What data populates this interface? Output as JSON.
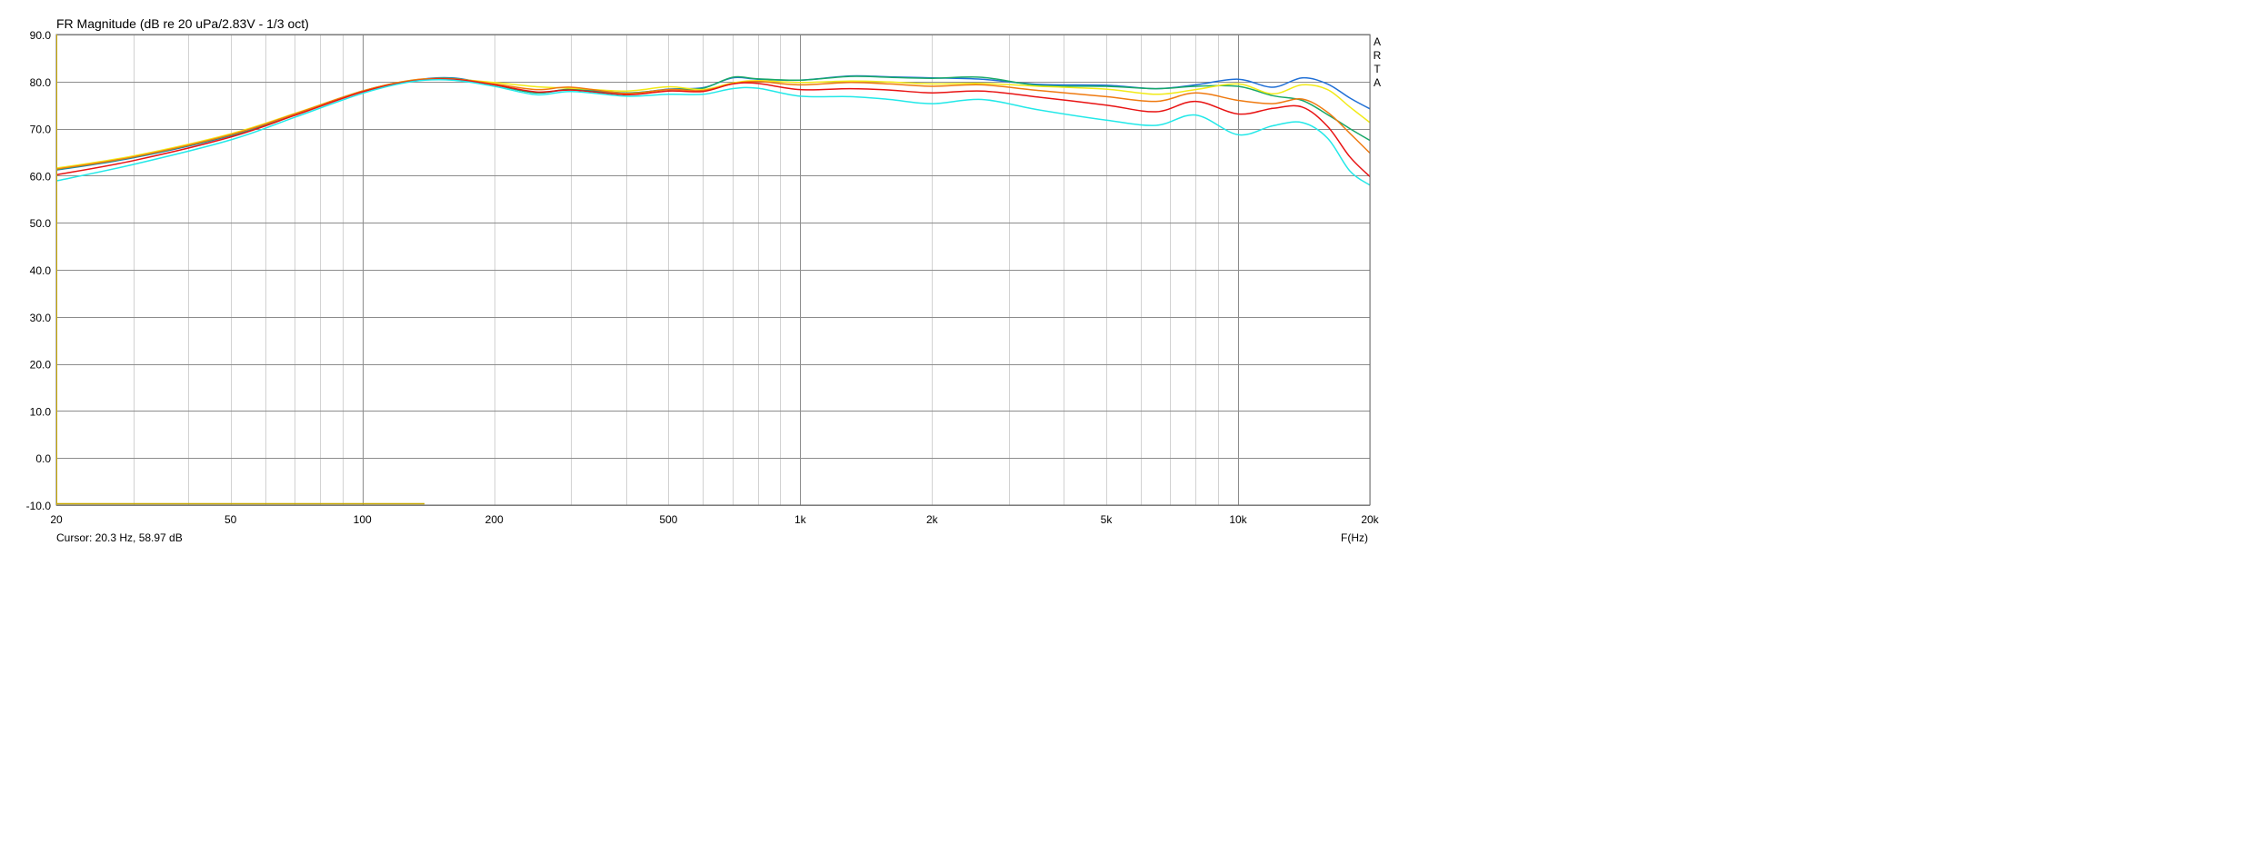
{
  "chart_data": {
    "type": "line",
    "title": "FR Magnitude (dB re 20 uPa/2.83V - 1/3 oct)",
    "xlabel": "F(Hz)",
    "x_scale": "log",
    "xlim": [
      20,
      20000
    ],
    "ylim": [
      -10,
      90
    ],
    "grid": true,
    "watermark": "ARTA",
    "cursor_text": "Cursor: 20.3 Hz, 58.97 dB",
    "x_ticks": [
      {
        "value": 20,
        "label": "20"
      },
      {
        "value": 50,
        "label": "50"
      },
      {
        "value": 100,
        "label": "100"
      },
      {
        "value": 200,
        "label": "200"
      },
      {
        "value": 500,
        "label": "500"
      },
      {
        "value": 1000,
        "label": "1k"
      },
      {
        "value": 2000,
        "label": "2k"
      },
      {
        "value": 5000,
        "label": "5k"
      },
      {
        "value": 10000,
        "label": "10k"
      },
      {
        "value": 20000,
        "label": "20k"
      }
    ],
    "y_ticks": [
      {
        "value": 90,
        "label": "90.0"
      },
      {
        "value": 80,
        "label": "80.0"
      },
      {
        "value": 70,
        "label": "70.0"
      },
      {
        "value": 60,
        "label": "60.0"
      },
      {
        "value": 50,
        "label": "50.0"
      },
      {
        "value": 40,
        "label": "40.0"
      },
      {
        "value": 30,
        "label": "30.0"
      },
      {
        "value": 20,
        "label": "20.0"
      },
      {
        "value": 10,
        "label": "10.0"
      },
      {
        "value": 0,
        "label": "0.0"
      },
      {
        "value": -10,
        "label": "-10.0"
      }
    ],
    "x": [
      20,
      30,
      50,
      70,
      100,
      130,
      160,
      200,
      250,
      300,
      400,
      500,
      600,
      700,
      800,
      1000,
      1300,
      1600,
      2000,
      2600,
      3500,
      5000,
      6500,
      8000,
      10000,
      12000,
      14000,
      16000,
      18000,
      20000
    ],
    "series": [
      {
        "color": "#1f6fd6",
        "values": [
          61.2,
          63.8,
          68.5,
          73.0,
          77.9,
          80.2,
          80.8,
          79.3,
          77.6,
          78.3,
          77.5,
          78.4,
          78.7,
          80.8,
          80.5,
          80.3,
          81.2,
          81.0,
          80.8,
          80.5,
          79.4,
          79.2,
          78.5,
          79.3,
          80.5,
          78.8,
          80.8,
          79.5,
          76.5,
          74.2
        ]
      },
      {
        "color": "#18a868",
        "values": [
          61.3,
          63.9,
          68.6,
          73.1,
          78.0,
          80.2,
          80.7,
          79.3,
          77.6,
          78.4,
          77.6,
          78.3,
          78.6,
          80.9,
          80.6,
          80.3,
          81.1,
          80.9,
          80.7,
          80.9,
          79.2,
          79.0,
          78.5,
          79.0,
          79.0,
          77.0,
          76.0,
          73.0,
          70.0,
          67.5
        ]
      },
      {
        "color": "#f2ea17",
        "values": [
          61.6,
          64.2,
          68.9,
          73.2,
          78.0,
          80.3,
          80.5,
          79.8,
          78.9,
          78.6,
          78.0,
          78.9,
          78.3,
          79.7,
          80.2,
          79.8,
          80.1,
          79.9,
          79.5,
          79.6,
          79.0,
          78.4,
          77.3,
          78.3,
          79.5,
          77.4,
          79.3,
          78.3,
          74.6,
          71.3
        ]
      },
      {
        "color": "#ef7a10",
        "values": [
          61.4,
          64.0,
          68.7,
          73.1,
          78.0,
          80.3,
          80.6,
          79.5,
          78.3,
          78.8,
          77.5,
          78.3,
          78.1,
          79.5,
          80.0,
          79.3,
          79.8,
          79.5,
          79.0,
          79.3,
          78.1,
          76.8,
          75.8,
          77.6,
          76.0,
          75.3,
          76.3,
          73.5,
          69.0,
          64.8
        ]
      },
      {
        "color": "#e81313",
        "values": [
          60.2,
          63.2,
          68.2,
          72.8,
          77.8,
          80.1,
          80.5,
          79.3,
          77.8,
          78.2,
          77.2,
          78.0,
          77.9,
          79.5,
          79.6,
          78.3,
          78.5,
          78.2,
          77.6,
          78.0,
          76.7,
          75.0,
          73.6,
          75.8,
          73.1,
          74.3,
          74.6,
          70.5,
          64.0,
          59.8
        ]
      },
      {
        "color": "#22e8e8",
        "values": [
          58.9,
          62.4,
          67.6,
          72.4,
          77.5,
          80.0,
          80.3,
          79.0,
          77.2,
          77.9,
          76.9,
          77.3,
          77.3,
          78.5,
          78.6,
          76.9,
          76.8,
          76.2,
          75.3,
          76.2,
          74.0,
          71.8,
          70.7,
          72.9,
          68.7,
          70.6,
          71.3,
          68.0,
          61.0,
          58.0
        ]
      }
    ]
  }
}
